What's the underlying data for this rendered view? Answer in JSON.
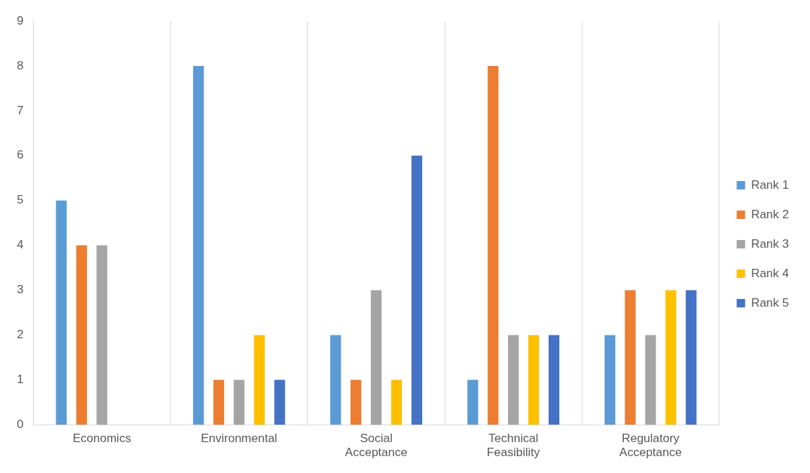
{
  "chart_data": {
    "type": "bar",
    "categories": [
      "Economics",
      "Environmental",
      "Social Acceptance",
      "Technical Feasibility",
      "Regulatory Acceptance"
    ],
    "series": [
      {
        "name": "Rank 1",
        "color": "#5b9bd5",
        "values": [
          5,
          8,
          2,
          1,
          2
        ]
      },
      {
        "name": "Rank 2",
        "color": "#ed7d31",
        "values": [
          4,
          1,
          1,
          8,
          3
        ]
      },
      {
        "name": "Rank 3",
        "color": "#a5a5a5",
        "values": [
          4,
          1,
          3,
          2,
          2
        ]
      },
      {
        "name": "Rank 4",
        "color": "#ffc000",
        "values": [
          0,
          2,
          1,
          2,
          3
        ]
      },
      {
        "name": "Rank 5",
        "color": "#4472c4",
        "values": [
          0,
          1,
          6,
          2,
          3
        ]
      }
    ],
    "ylim": [
      0,
      9
    ],
    "yticks": [
      0,
      1,
      2,
      3,
      4,
      5,
      6,
      7,
      8,
      9
    ],
    "grid": "x",
    "legend": "right"
  }
}
